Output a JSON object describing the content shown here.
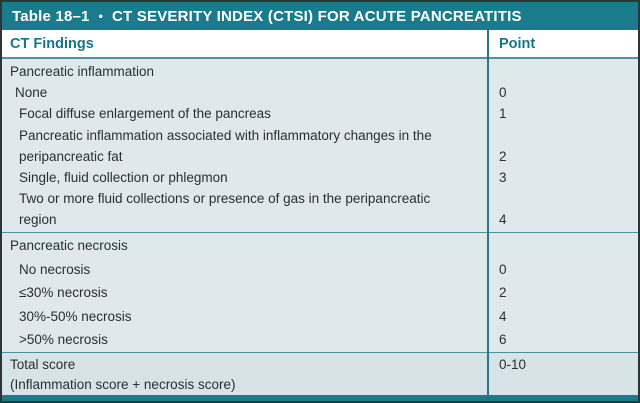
{
  "colors": {
    "teal_accent": "#1a7b8d",
    "header_text_teal": "#16758a",
    "body_background": "#dfe9eb",
    "footer_background": "#d6e4e7",
    "body_text": "#2c2e30"
  },
  "table": {
    "title": {
      "label": "Table 18–1",
      "bullet": "•",
      "text": "CT SEVERITY INDEX (CTSI) FOR ACUTE PANCREATITIS"
    },
    "columns": {
      "findings": "CT Findings",
      "points": "Point"
    },
    "sections": [
      {
        "header": "Pancreatic inflammation",
        "rows": [
          {
            "finding": "None",
            "point": "0"
          },
          {
            "finding": "Focal diffuse enlargement of the pancreas",
            "point": "1"
          },
          {
            "finding": "Pancreatic inflammation associated with inflammatory changes in the\nperipancreatic fat",
            "point": "2"
          },
          {
            "finding": "Single, fluid collection or phlegmon",
            "point": "3"
          },
          {
            "finding": "Two or more fluid collections or presence of gas in the peripancreatic\nregion",
            "point": "4"
          }
        ]
      },
      {
        "header": "Pancreatic necrosis",
        "rows": [
          {
            "finding": "No necrosis",
            "point": "0"
          },
          {
            "finding": "≤30% necrosis",
            "point": "2"
          },
          {
            "finding": "30%-50% necrosis",
            "point": "4"
          },
          {
            "finding": ">50% necrosis",
            "point": "6"
          }
        ]
      }
    ],
    "footer": {
      "label": "Total score",
      "sublabel": "(Inflammation score + necrosis score)",
      "point": "0-10"
    }
  }
}
